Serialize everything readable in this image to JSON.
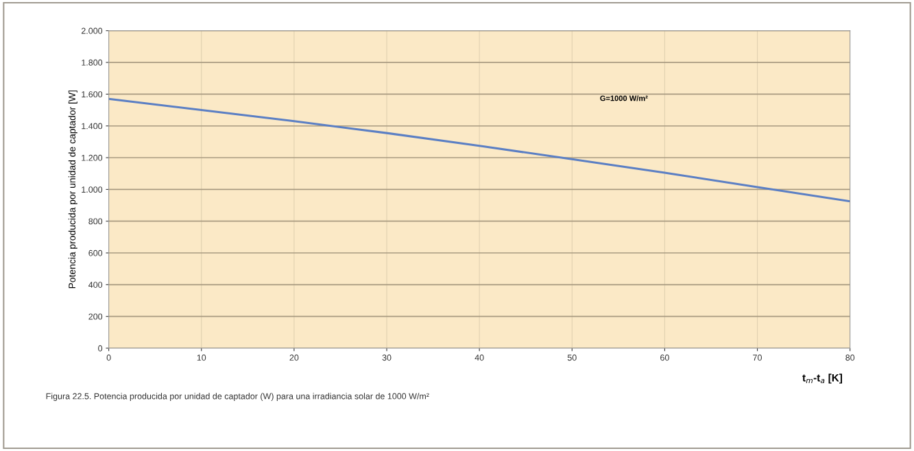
{
  "chart_data": {
    "type": "line",
    "xlabel": "t$_{m}$-t$_{a}$ [K]",
    "ylabel": "Potencia producida por unidad de captador [W]",
    "x": [
      0,
      10,
      20,
      30,
      40,
      50,
      60,
      70,
      80
    ],
    "series": [
      {
        "name": "G=1000 W/m²",
        "color": "#5b7fc4",
        "values": [
          1570,
          1500,
          1430,
          1355,
          1275,
          1190,
          1105,
          1015,
          925
        ]
      }
    ],
    "xlim": [
      0,
      80
    ],
    "xticks": [
      0,
      10,
      20,
      30,
      40,
      50,
      60,
      70,
      80
    ],
    "ylim": [
      0,
      2000
    ],
    "yticks": [
      {
        "value": 0,
        "label": "0"
      },
      {
        "value": 200,
        "label": "200"
      },
      {
        "value": 400,
        "label": "400"
      },
      {
        "value": 600,
        "label": "600"
      },
      {
        "value": 800,
        "label": "800"
      },
      {
        "value": 1000,
        "label": "1.000"
      },
      {
        "value": 1200,
        "label": "1.200"
      },
      {
        "value": 1400,
        "label": "1.400"
      },
      {
        "value": 1600,
        "label": "1.600"
      },
      {
        "value": 1800,
        "label": "1.800"
      },
      {
        "value": 2000,
        "label": "2.000"
      }
    ],
    "grid": true,
    "marker": "none",
    "line_style": "solid",
    "legend": false,
    "annotations": [
      "Figura 22.5. Potencia producida por unidad de captador (W) para una irradiancia solar de 1000 W/m²"
    ]
  }
}
